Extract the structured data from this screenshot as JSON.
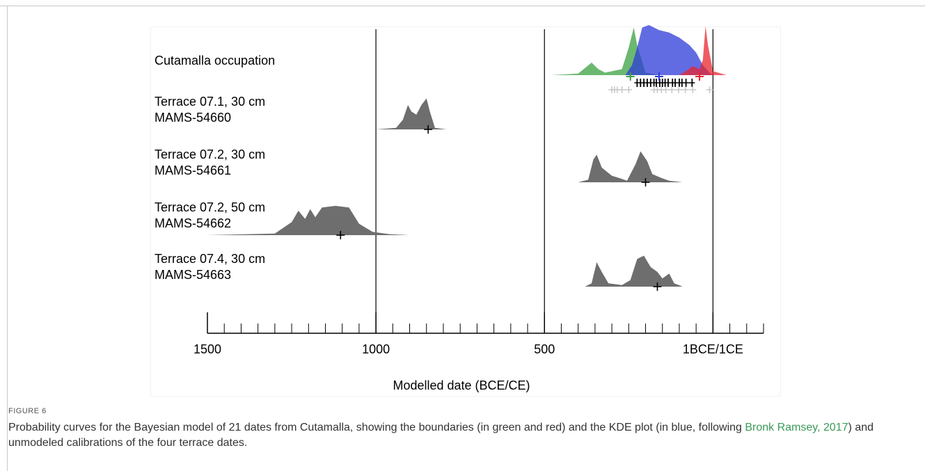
{
  "figure": {
    "label": "FIGURE 6",
    "caption_before": "Probability curves for the Bayesian model of 21 dates from Cutamalla, showing the boundaries (in green and red) and the KDE plot (in blue, following ",
    "caption_link": "Bronk Ramsey, 2017",
    "caption_after": ") and unmodeled calibrations of the four terrace dates."
  },
  "colors": {
    "green": "#3aa040",
    "blue": "#2e3bd8",
    "red": "#e8262e",
    "gray": "#6e6e6e",
    "light_gray": "#c8c8c8",
    "link": "#3a9a57"
  },
  "chart_data": {
    "type": "area",
    "xlabel": "Modelled date (BCE/CE)",
    "xlim": [
      -1500,
      150
    ],
    "ticks": [
      {
        "value": -1500,
        "label": "1500"
      },
      {
        "value": -1000,
        "label": "1000"
      },
      {
        "value": -500,
        "label": "500"
      },
      {
        "value": 0,
        "label": "1BCE/1CE"
      }
    ],
    "minor_tick_step": 50,
    "reference_lines": [
      -1000,
      -500,
      0
    ],
    "series": [
      {
        "name": "Cutamalla occupation",
        "label_lines": [
          "Cutamalla occupation"
        ],
        "kind": "group",
        "curves": [
          {
            "role": "start-boundary",
            "color": "green",
            "opacity": 0.75,
            "points": [
              [
                -480,
                0
              ],
              [
                -400,
                0.03
              ],
              [
                -360,
                0.25
              ],
              [
                -340,
                0.12
              ],
              [
                -320,
                0.05
              ],
              [
                -270,
                0.12
              ],
              [
                -250,
                0.55
              ],
              [
                -235,
                0.95
              ],
              [
                -225,
                0.6
              ],
              [
                -200,
                0.05
              ],
              [
                -160,
                0
              ]
            ],
            "mean": -245
          },
          {
            "role": "kde",
            "color": "blue",
            "opacity": 0.75,
            "points": [
              [
                -260,
                0
              ],
              [
                -240,
                0.2
              ],
              [
                -225,
                0.55
              ],
              [
                -210,
                0.95
              ],
              [
                -190,
                1.0
              ],
              [
                -160,
                0.9
              ],
              [
                -130,
                0.85
              ],
              [
                -100,
                0.75
              ],
              [
                -70,
                0.6
              ],
              [
                -50,
                0.45
              ],
              [
                -30,
                0.2
              ],
              [
                -10,
                0.05
              ],
              [
                0,
                0
              ]
            ],
            "mean": -160
          },
          {
            "role": "end-boundary",
            "color": "red",
            "opacity": 0.75,
            "points": [
              [
                -100,
                0
              ],
              [
                -80,
                0.08
              ],
              [
                -60,
                0.18
              ],
              [
                -40,
                0.12
              ],
              [
                -30,
                0.3
              ],
              [
                -22,
                0.98
              ],
              [
                -15,
                0.6
              ],
              [
                0,
                0.08
              ],
              [
                40,
                0
              ]
            ],
            "mean": -40
          }
        ],
        "modelled_dates": [
          -225,
          -215,
          -205,
          -195,
          -185,
          -175,
          -168,
          -158,
          -150,
          -142,
          -133,
          -120,
          -112,
          -100,
          -92,
          -80,
          -62
        ],
        "unmodelled_dates": [
          -300,
          -292,
          -284,
          -270,
          -250,
          -175,
          -165,
          -153,
          -140,
          -122,
          -102,
          -82,
          -60,
          -10
        ]
      },
      {
        "name": "Terrace 07.1, 30 cm",
        "label_lines": [
          "Terrace 07.1, 30 cm",
          "MAMS-54660"
        ],
        "kind": "calibration",
        "points": [
          [
            -1000,
            0
          ],
          [
            -940,
            0.05
          ],
          [
            -920,
            0.3
          ],
          [
            -905,
            0.75
          ],
          [
            -895,
            0.55
          ],
          [
            -880,
            0.45
          ],
          [
            -865,
            0.75
          ],
          [
            -850,
            0.95
          ],
          [
            -840,
            0.55
          ],
          [
            -825,
            0.05
          ],
          [
            -790,
            0
          ]
        ],
        "mean": -845
      },
      {
        "name": "Terrace 07.2, 30 cm",
        "label_lines": [
          "Terrace 07.2, 30 cm",
          "MAMS-54661"
        ],
        "kind": "calibration",
        "points": [
          [
            -400,
            0
          ],
          [
            -370,
            0.08
          ],
          [
            -355,
            0.7
          ],
          [
            -345,
            0.85
          ],
          [
            -330,
            0.45
          ],
          [
            -300,
            0.2
          ],
          [
            -275,
            0.12
          ],
          [
            -255,
            0.05
          ],
          [
            -230,
            0.55
          ],
          [
            -215,
            0.95
          ],
          [
            -195,
            0.65
          ],
          [
            -180,
            0.25
          ],
          [
            -150,
            0.12
          ],
          [
            -130,
            0.05
          ],
          [
            -90,
            0
          ]
        ],
        "mean": -200
      },
      {
        "name": "Terrace 07.2, 50 cm",
        "label_lines": [
          "Terrace 07.2, 50 cm",
          "MAMS-54662"
        ],
        "kind": "calibration",
        "points": [
          [
            -1500,
            0
          ],
          [
            -1300,
            0.05
          ],
          [
            -1250,
            0.4
          ],
          [
            -1230,
            0.75
          ],
          [
            -1210,
            0.5
          ],
          [
            -1195,
            0.8
          ],
          [
            -1180,
            0.55
          ],
          [
            -1160,
            0.85
          ],
          [
            -1120,
            0.9
          ],
          [
            -1080,
            0.85
          ],
          [
            -1050,
            0.35
          ],
          [
            -1010,
            0.1
          ],
          [
            -960,
            0.03
          ],
          [
            -900,
            0
          ]
        ],
        "mean": -1105
      },
      {
        "name": "Terrace 07.4, 30 cm",
        "label_lines": [
          "Terrace 07.4, 30 cm",
          "MAMS-54663"
        ],
        "kind": "calibration",
        "points": [
          [
            -380,
            0
          ],
          [
            -360,
            0.1
          ],
          [
            -345,
            0.75
          ],
          [
            -330,
            0.45
          ],
          [
            -310,
            0.1
          ],
          [
            -270,
            0.05
          ],
          [
            -245,
            0.2
          ],
          [
            -225,
            0.85
          ],
          [
            -205,
            0.95
          ],
          [
            -185,
            0.6
          ],
          [
            -165,
            0.45
          ],
          [
            -150,
            0.25
          ],
          [
            -130,
            0.4
          ],
          [
            -115,
            0.1
          ],
          [
            -90,
            0
          ]
        ],
        "mean": -165
      }
    ]
  }
}
